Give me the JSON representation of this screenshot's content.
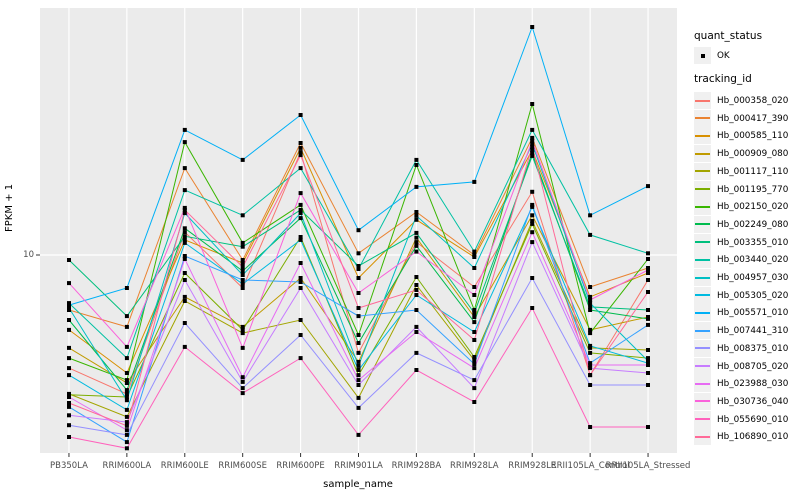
{
  "figure": {
    "background": "#FFFFFF",
    "panel_background": "#EBEBEB",
    "grid_color": "#FFFFFF",
    "tick_color": "#333333",
    "tick_text_color": "#4D4D4D",
    "point_color": "#000000",
    "legend_key_background": "#F0F0F0"
  },
  "axes": {
    "x_label": "sample_name",
    "y_label": "FPKM + 1",
    "y_tick_label": "10"
  },
  "legend": {
    "quant_status_title": "quant_status",
    "quant_status_ok_label": "OK",
    "tracking_id_title": "tracking_id"
  },
  "chart_data": {
    "type": "line",
    "title": "",
    "xlabel": "sample_name",
    "ylabel": "FPKM + 1",
    "y_scale": "log10",
    "y_tick_values": [
      10
    ],
    "grid": true,
    "legend_position": "right",
    "point_shape": "filled-black-square",
    "quant_status": "OK",
    "categories": [
      "PB350LA",
      "RRIM600LA",
      "RRIM600LE",
      "RRIM600SE",
      "RRIM600PE",
      "RRIM901LA",
      "RRIM928BA",
      "RRIM928LA",
      "RRIM928LE",
      "RRII105LA_Control",
      "RRII105LA_Stressed"
    ],
    "series": [
      {
        "name": "Hb_000358_020",
        "color": "#F8766D",
        "values": [
          2.72,
          2.02,
          13.0,
          6.84,
          32.7,
          3.24,
          11.6,
          6.92,
          20.7,
          2.51,
          7.5
        ]
      },
      {
        "name": "Hb_000417_390",
        "color": "#EA8331",
        "values": [
          5.31,
          4.37,
          27.2,
          9.44,
          36.3,
          10.2,
          16.4,
          10.0,
          38.5,
          6.92,
          8.61
        ]
      },
      {
        "name": "Hb_000585_110",
        "color": "#D89000",
        "values": [
          4.22,
          2.57,
          11.9,
          9.12,
          34.3,
          7.67,
          15.0,
          9.77,
          33.5,
          6.17,
          8.13
        ]
      },
      {
        "name": "Hb_000909_080",
        "color": "#C09B00",
        "values": [
          3.43,
          2.29,
          6.17,
          4.37,
          7.67,
          2.92,
          12.2,
          4.9,
          15.8,
          4.22,
          4.9
        ]
      },
      {
        "name": "Hb_001117_110",
        "color": "#A3A500",
        "values": [
          2.02,
          1.55,
          5.89,
          4.07,
          4.73,
          1.93,
          7.08,
          2.98,
          14.8,
          3.43,
          3.35
        ]
      },
      {
        "name": "Hb_001195_770",
        "color": "#7CAE00",
        "values": [
          2.0,
          1.95,
          8.13,
          4.22,
          12.3,
          2.51,
          7.76,
          3.09,
          14.3,
          3.24,
          3.05
        ]
      },
      {
        "name": "Hb_002150_020",
        "color": "#39B600",
        "values": [
          3.05,
          2.37,
          36.7,
          11.5,
          17.8,
          3.98,
          28.2,
          5.31,
          56.9,
          4.07,
          9.55
        ]
      },
      {
        "name": "Hb_002249_080",
        "color": "#00BB4E",
        "values": [
          4.73,
          2.11,
          13.6,
          8.32,
          15.3,
          3.63,
          11.1,
          4.62,
          32.4,
          5.31,
          4.79
        ]
      },
      {
        "name": "Hb_003355_010",
        "color": "#00BF7D",
        "values": [
          9.44,
          4.95,
          12.4,
          11.0,
          16.8,
          8.81,
          12.9,
          5.13,
          31.3,
          5.5,
          5.31
        ]
      },
      {
        "name": "Hb_003440_020",
        "color": "#00C1A3",
        "values": [
          5.75,
          3.05,
          21.1,
          15.8,
          27.2,
          8.51,
          29.9,
          10.4,
          42.2,
          12.6,
          10.2
        ]
      },
      {
        "name": "Hb_004957_030",
        "color": "#00BFC4",
        "values": [
          5.43,
          1.88,
          16.2,
          7.94,
          16.2,
          2.79,
          15.7,
          8.61,
          35.9,
          5.75,
          2.95
        ]
      },
      {
        "name": "Hb_005305_020",
        "color": "#00BAE0",
        "values": [
          2.51,
          1.68,
          11.5,
          7.16,
          11.9,
          2.66,
          6.31,
          4.12,
          17.4,
          3.51,
          2.88
        ]
      },
      {
        "name": "Hb_005571_010",
        "color": "#00B0F6",
        "values": [
          5.62,
          6.84,
          42.2,
          29.9,
          50.1,
          13.3,
          21.9,
          23.2,
          138,
          15.8,
          22.1
        ]
      },
      {
        "name": "Hb_007441_310",
        "color": "#35A2FF",
        "values": [
          1.74,
          1.16,
          9.89,
          7.5,
          7.33,
          4.95,
          5.31,
          2.85,
          17.8,
          2.88,
          4.47
        ]
      },
      {
        "name": "Hb_008375_010",
        "color": "#9590FF",
        "values": [
          1.41,
          1.26,
          4.57,
          2.16,
          3.98,
          1.72,
          3.24,
          2.37,
          7.67,
          2.24,
          2.24
        ]
      },
      {
        "name": "Hb_008705_020",
        "color": "#C77CFF",
        "values": [
          1.58,
          1.46,
          7.5,
          2.32,
          6.84,
          2.24,
          4.37,
          2.16,
          11.6,
          2.72,
          2.57
        ]
      },
      {
        "name": "Hb_023988_030",
        "color": "#E76BF3",
        "values": [
          1.95,
          1.33,
          9.55,
          2.45,
          9.12,
          2.37,
          4.12,
          2.72,
          13.0,
          2.82,
          2.82
        ]
      },
      {
        "name": "Hb_030736_040",
        "color": "#FA62DB",
        "values": [
          7.24,
          3.47,
          17.2,
          3.43,
          20.4,
          6.46,
          10.4,
          6.31,
          37.2,
          5.96,
          8.41
        ]
      },
      {
        "name": "Hb_055690_010",
        "color": "#FF62BC",
        "values": [
          1.23,
          1.08,
          3.47,
          2.04,
          3.05,
          1.26,
          2.66,
          1.84,
          5.43,
          1.38,
          1.38
        ]
      },
      {
        "name": "Hb_106890_010",
        "color": "#FF6A98",
        "values": [
          1.82,
          1.4,
          16.8,
          8.71,
          31.6,
          5.43,
          6.68,
          3.76,
          34.7,
          2.51,
          6.53
        ]
      }
    ]
  }
}
